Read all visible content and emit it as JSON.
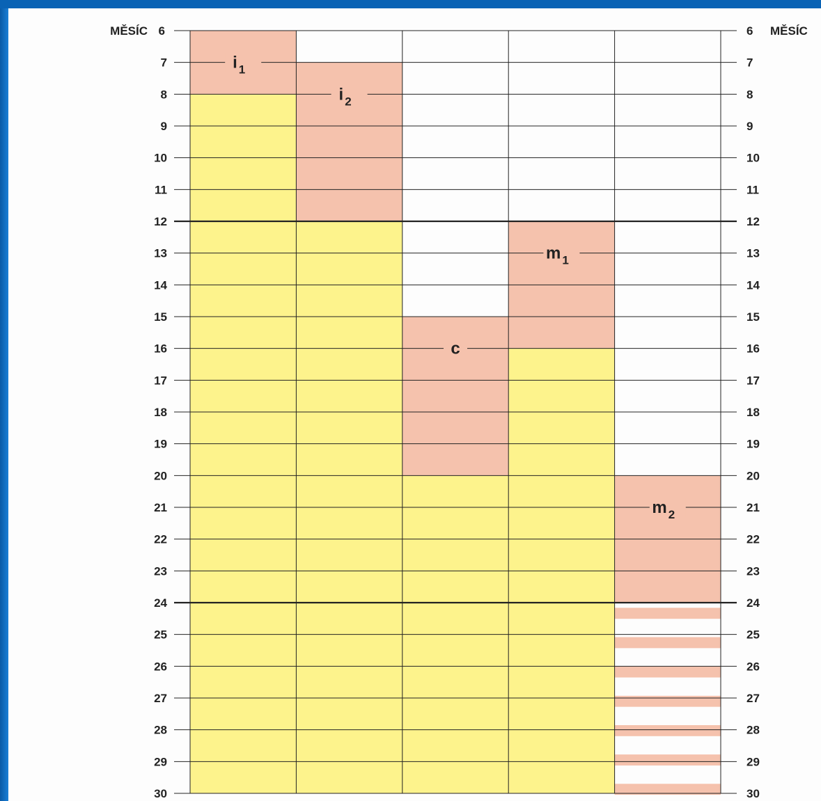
{
  "chart_data": {
    "type": "bar",
    "orientation": "vertical-ranges",
    "y_axis": {
      "title_left": "MĚSÍC",
      "title_right": "MĚSÍC",
      "ylim": [
        6,
        30
      ],
      "ticks": [
        6,
        7,
        8,
        9,
        10,
        11,
        12,
        13,
        14,
        15,
        16,
        17,
        18,
        19,
        20,
        21,
        22,
        23,
        24,
        25,
        26,
        27,
        28,
        29,
        30
      ],
      "emphasized_ticks": [
        12,
        24
      ]
    },
    "columns": 5,
    "phases": [
      {
        "column": 1,
        "yellow_from": 8,
        "yellow_to": 30,
        "pink_from": 6,
        "pink_to": 8,
        "label": "i",
        "sub": "1",
        "label_month": 7
      },
      {
        "column": 2,
        "yellow_from": 12,
        "yellow_to": 30,
        "pink_from": 7,
        "pink_to": 12,
        "label": "i",
        "sub": "2",
        "label_month": 8
      },
      {
        "column": 3,
        "yellow_from": 20,
        "yellow_to": 30,
        "pink_from": 15,
        "pink_to": 20,
        "label": "c",
        "sub": "",
        "label_month": 16
      },
      {
        "column": 4,
        "yellow_from": 16,
        "yellow_to": 30,
        "pink_from": 12,
        "pink_to": 16,
        "label": "m",
        "sub": "1",
        "label_month": 13
      },
      {
        "column": 5,
        "yellow_from": null,
        "yellow_to": null,
        "pink_from": 20,
        "pink_to": 24,
        "label": "m",
        "sub": "2",
        "label_month": 21,
        "striped_from": 24,
        "striped_to": 30
      }
    ],
    "colors": {
      "yellow": "#fdf38c",
      "pink": "#f5c2ad",
      "grid": "#222222",
      "background_frame": "#0a63b5"
    }
  }
}
